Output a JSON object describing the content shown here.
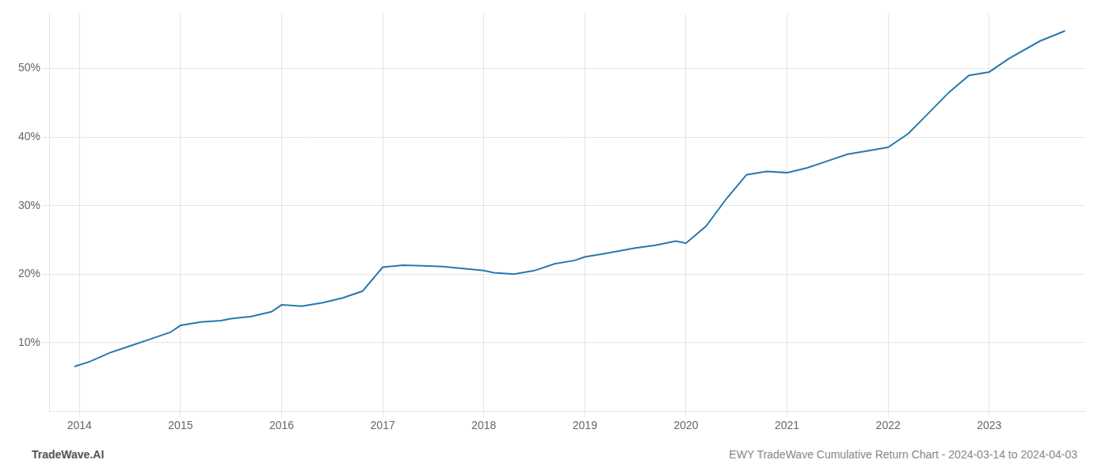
{
  "chart_data": {
    "type": "line",
    "title": "EWY TradeWave Cumulative Return Chart - 2024-03-14 to 2024-04-03",
    "annotations": [
      "TradeWave.AI"
    ],
    "color": "#2878b0",
    "x": [
      2013.95,
      2014.1,
      2014.3,
      2014.5,
      2014.7,
      2014.9,
      2015.0,
      2015.2,
      2015.4,
      2015.5,
      2015.7,
      2015.9,
      2016.0,
      2016.2,
      2016.4,
      2016.6,
      2016.8,
      2017.0,
      2017.2,
      2017.4,
      2017.6,
      2017.8,
      2018.0,
      2018.1,
      2018.3,
      2018.5,
      2018.7,
      2018.9,
      2019.0,
      2019.2,
      2019.5,
      2019.7,
      2019.9,
      2020.0,
      2020.2,
      2020.4,
      2020.6,
      2020.8,
      2021.0,
      2021.2,
      2021.4,
      2021.6,
      2021.8,
      2022.0,
      2022.2,
      2022.4,
      2022.6,
      2022.8,
      2023.0,
      2023.2,
      2023.5,
      2023.75
    ],
    "values": [
      6.5,
      7.2,
      8.5,
      9.5,
      10.5,
      11.5,
      12.5,
      13.0,
      13.2,
      13.5,
      13.8,
      14.5,
      15.5,
      15.3,
      15.8,
      16.5,
      17.5,
      21.0,
      21.3,
      21.2,
      21.1,
      20.8,
      20.5,
      20.2,
      20.0,
      20.5,
      21.5,
      22.0,
      22.5,
      23.0,
      23.8,
      24.2,
      24.8,
      24.5,
      27.0,
      31.0,
      34.5,
      35.0,
      34.8,
      35.5,
      36.5,
      37.5,
      38.0,
      38.5,
      40.5,
      43.5,
      46.5,
      49.0,
      49.5,
      51.5,
      54.0,
      55.5
    ],
    "xlim": [
      2013.7,
      2023.95
    ],
    "ylim": [
      0,
      58
    ],
    "xticks": [
      2014,
      2015,
      2016,
      2017,
      2018,
      2019,
      2020,
      2021,
      2022,
      2023
    ],
    "yticks": [
      {
        "value": 10,
        "label": "10%"
      },
      {
        "value": 20,
        "label": "20%"
      },
      {
        "value": 30,
        "label": "30%"
      },
      {
        "value": 40,
        "label": "40%"
      },
      {
        "value": 50,
        "label": "50%"
      }
    ],
    "grid": true
  }
}
